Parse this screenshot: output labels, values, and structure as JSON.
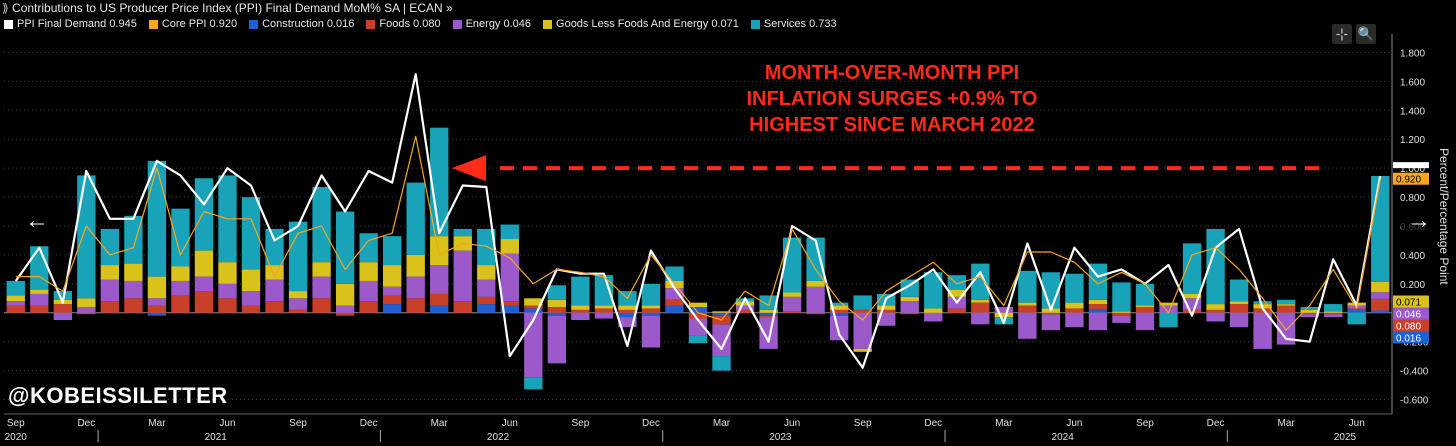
{
  "window": {
    "title_glyph": "⟫",
    "title": "Contributions to US Producer Price Index (PPI) Final Demand MoM% SA | ECAN »"
  },
  "legend": [
    {
      "label": "PPI Final Demand 0.945",
      "color": "#ffffff"
    },
    {
      "label": "Core PPI 0.920",
      "color": "#f5a623"
    },
    {
      "label": "Construction 0.016",
      "color": "#1f5fd1"
    },
    {
      "label": "Foods 0.080",
      "color": "#c8402a"
    },
    {
      "label": "Energy 0.046",
      "color": "#9b59c9"
    },
    {
      "label": "Goods Less Foods And Energy 0.071",
      "color": "#d9c21a"
    },
    {
      "label": "Services 0.733",
      "color": "#19a3b8"
    }
  ],
  "toolbar": {
    "crosshair_glyph": "-¦-",
    "zoom_glyph": "🔍"
  },
  "annotation": {
    "line1": "MONTH-OVER-MONTH PPI",
    "line2": "INFLATION SURGES +0.9% TO",
    "line3": "HIGHEST SINCE MARCH 2022"
  },
  "watermark": "@KOBEISSILETTER",
  "nav": {
    "left": "←",
    "right": "→"
  },
  "chart_data": {
    "type": "bar",
    "stacked": true,
    "title": "Contributions to US Producer Price Index (PPI) Final Demand MoM% SA",
    "ylabel": "Percent/Percentage Point",
    "ylim": [
      -0.7,
      1.9
    ],
    "yticks": [
      -0.6,
      -0.4,
      -0.2,
      0,
      0.2,
      0.4,
      0.6,
      0.8,
      1.0,
      1.2,
      1.4,
      1.6,
      1.8
    ],
    "ytick_labels": [
      "-0.600",
      "-0.400",
      "-0.200",
      "0.000",
      "0.200",
      "0.400",
      "0.600",
      "0.800",
      "1.000",
      "1.200",
      "1.400",
      "1.600",
      "1.800"
    ],
    "x_month_labels": [
      {
        "i": 0,
        "label": "Sep"
      },
      {
        "i": 3,
        "label": "Dec"
      },
      {
        "i": 6,
        "label": "Mar"
      },
      {
        "i": 9,
        "label": "Jun"
      },
      {
        "i": 12,
        "label": "Sep"
      },
      {
        "i": 15,
        "label": "Dec"
      },
      {
        "i": 18,
        "label": "Mar"
      },
      {
        "i": 21,
        "label": "Jun"
      },
      {
        "i": 24,
        "label": "Sep"
      },
      {
        "i": 27,
        "label": "Dec"
      },
      {
        "i": 30,
        "label": "Mar"
      },
      {
        "i": 33,
        "label": "Jun"
      },
      {
        "i": 36,
        "label": "Sep"
      },
      {
        "i": 39,
        "label": "Dec"
      },
      {
        "i": 42,
        "label": "Mar"
      },
      {
        "i": 45,
        "label": "Jun"
      },
      {
        "i": 48,
        "label": "Sep"
      },
      {
        "i": 51,
        "label": "Dec"
      },
      {
        "i": 54,
        "label": "Mar"
      },
      {
        "i": 57,
        "label": "Jun"
      }
    ],
    "x_year_labels": [
      {
        "i": 0,
        "label": "2020"
      },
      {
        "i": 8.5,
        "label": "2021"
      },
      {
        "i": 20.5,
        "label": "2022"
      },
      {
        "i": 32.5,
        "label": "2023"
      },
      {
        "i": 44.5,
        "label": "2024"
      },
      {
        "i": 56.5,
        "label": "2025"
      }
    ],
    "year_dividers": [
      3.5,
      15.5,
      27.5,
      39.5,
      51.5
    ],
    "series": [
      {
        "name": "Construction",
        "color": "#1f5fd1",
        "values": [
          0,
          0,
          0,
          0,
          0,
          0,
          -0.02,
          0,
          0,
          0,
          0,
          0,
          0,
          0,
          0,
          0,
          0.06,
          0,
          0.05,
          0,
          0.06,
          0.05,
          0.03,
          -0.02,
          0,
          0,
          -0.03,
          -0.02,
          0.05,
          0.04,
          -0.02,
          0,
          -0.02,
          0,
          0,
          -0.02,
          0,
          0,
          0,
          0,
          0,
          0,
          0,
          0,
          0,
          0,
          0.02,
          0,
          0,
          0,
          0,
          0,
          0,
          0,
          0,
          0,
          0,
          0.02,
          0.016
        ]
      },
      {
        "name": "Foods",
        "color": "#c8402a",
        "values": [
          0.05,
          0.05,
          0.06,
          -0.01,
          0.08,
          0.1,
          0.05,
          0.12,
          0.15,
          0.1,
          0.05,
          0.08,
          0.02,
          0.1,
          -0.02,
          0.08,
          0.06,
          0.1,
          0.08,
          0.08,
          0.05,
          0.03,
          0.02,
          0.04,
          0.02,
          0.03,
          0.02,
          0.03,
          0.04,
          -0.04,
          -0.06,
          0.02,
          -0.01,
          0.01,
          -0.01,
          0.02,
          0.02,
          0.02,
          -0.01,
          0,
          0.03,
          0.07,
          0,
          0.05,
          -0.01,
          0.03,
          0.04,
          -0.02,
          0.04,
          0,
          0.02,
          0.02,
          0.06,
          0.03,
          0.05,
          -0.01,
          -0.01,
          0.01,
          0.08
        ]
      },
      {
        "name": "Energy",
        "color": "#9b59c9",
        "values": [
          0.03,
          0.08,
          -0.05,
          0.04,
          0.15,
          0.12,
          0.05,
          0.1,
          0.1,
          0.1,
          0.1,
          0.15,
          0.08,
          0.15,
          0.05,
          0.14,
          0.06,
          0.15,
          0.2,
          0.35,
          0.12,
          0.33,
          -0.45,
          -0.33,
          -0.05,
          -0.04,
          -0.07,
          -0.22,
          0.08,
          -0.12,
          -0.22,
          0.03,
          -0.22,
          0.1,
          0.18,
          -0.17,
          -0.25,
          -0.09,
          0.08,
          -0.06,
          0.08,
          -0.08,
          0.04,
          -0.18,
          -0.11,
          -0.1,
          -0.12,
          -0.05,
          -0.12,
          0.05,
          0.08,
          -0.06,
          -0.1,
          -0.25,
          -0.22,
          -0.02,
          -0.02,
          0.02,
          0.046
        ]
      },
      {
        "name": "Goods Less Foods And Energy",
        "color": "#d9c21a",
        "values": [
          0.04,
          0.03,
          0.03,
          0.06,
          0.1,
          0.12,
          0.15,
          0.1,
          0.18,
          0.15,
          0.15,
          0.1,
          0.05,
          0.1,
          0.15,
          0.13,
          0.15,
          0.15,
          0.2,
          0.1,
          0.1,
          0.1,
          0.05,
          0.05,
          0.03,
          0.02,
          0.03,
          0.02,
          0.05,
          0.03,
          0.01,
          0.03,
          0.02,
          0.03,
          0.04,
          0.03,
          -0.02,
          0.03,
          0.03,
          0.03,
          0.05,
          0.02,
          -0.03,
          0.02,
          0.03,
          0.04,
          0.03,
          0.01,
          0.01,
          0.02,
          0.03,
          0.04,
          0.02,
          0.03,
          0.01,
          0.02,
          0.01,
          0.02,
          0.071
        ]
      },
      {
        "name": "Services",
        "color": "#19a3b8",
        "values": [
          0.1,
          0.3,
          0.06,
          0.85,
          0.25,
          0.33,
          0.8,
          0.4,
          0.5,
          0.6,
          0.5,
          0.25,
          0.48,
          0.52,
          0.5,
          0.2,
          0.2,
          0.5,
          0.75,
          0.05,
          0.25,
          0.1,
          -0.08,
          0.1,
          0.2,
          0.21,
          0.1,
          0.15,
          0.1,
          -0.05,
          -0.1,
          0.02,
          0.1,
          0.38,
          0.3,
          0.02,
          0.1,
          0.08,
          0.12,
          0.25,
          0.1,
          0.25,
          -0.05,
          0.22,
          0.25,
          0.2,
          0.25,
          0.2,
          0.15,
          -0.1,
          0.35,
          0.52,
          0.15,
          0.02,
          0.03,
          0.02,
          0.05,
          -0.08,
          0.733
        ]
      }
    ],
    "lines": [
      {
        "name": "PPI Final Demand",
        "color": "#ffffff",
        "values": [
          0.22,
          0.45,
          0.07,
          0.98,
          0.65,
          0.65,
          1.05,
          0.95,
          0.75,
          1.0,
          0.88,
          0.5,
          0.6,
          0.95,
          0.7,
          0.98,
          0.9,
          1.65,
          0.55,
          0.88,
          0.87,
          -0.3,
          -0.05,
          0.3,
          0.27,
          0.27,
          -0.23,
          0.43,
          0.17,
          -0.05,
          -0.25,
          0.1,
          -0.2,
          0.6,
          0.5,
          -0.15,
          -0.38,
          0.1,
          0.19,
          0.3,
          0.07,
          0.28,
          -0.07,
          0.48,
          0.02,
          0.45,
          0.25,
          0.3,
          0.2,
          0.33,
          -0.02,
          0.45,
          0.58,
          0.03,
          -0.18,
          -0.2,
          0.37,
          0.05,
          0.945
        ]
      },
      {
        "name": "Core PPI",
        "color": "#f5a623",
        "values": [
          0.25,
          0.25,
          0.15,
          0.6,
          0.4,
          0.45,
          1.0,
          0.4,
          0.7,
          0.65,
          0.65,
          0.25,
          0.55,
          0.6,
          0.3,
          0.5,
          0.55,
          1.22,
          0.4,
          0.48,
          0.46,
          0.38,
          0.2,
          0.3,
          0.28,
          0.25,
          0.1,
          0.4,
          0.2,
          0,
          -0.05,
          0.15,
          0.05,
          0.58,
          0.3,
          0.08,
          -0.05,
          0.15,
          0.25,
          0.35,
          0.2,
          0.25,
          0.05,
          0.42,
          0.42,
          0.35,
          0.2,
          0.28,
          0.2,
          0,
          0.4,
          0.45,
          0.3,
          0.1,
          -0.12,
          0.05,
          0.3,
          0.03,
          0.92
        ]
      }
    ],
    "right_value_labels": [
      {
        "label": "0.920",
        "value": 0.92,
        "color": "#f5a623"
      },
      {
        "label": "0.071",
        "value": 0.071,
        "color": "#d9c21a"
      },
      {
        "label": "0.046",
        "value": 0.046,
        "color": "#9b59c9"
      },
      {
        "label": "0.080",
        "value": 0.08,
        "color": "#c8402a"
      },
      {
        "label": "0.016",
        "value": 0.016,
        "color": "#1f5fd1"
      }
    ],
    "reference_line": {
      "value": 1.0,
      "label": "highest since March 2022"
    }
  }
}
